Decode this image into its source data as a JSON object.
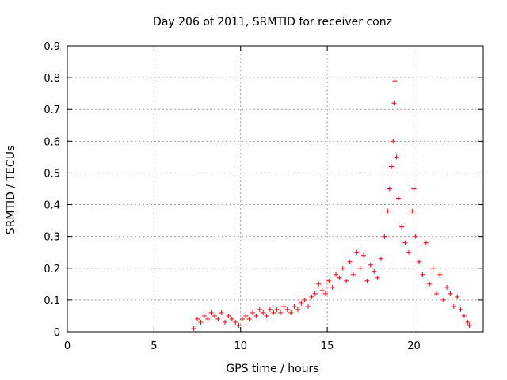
{
  "chart_data": {
    "type": "scatter",
    "title": "Day 206 of 2011, SRMTID for receiver conz",
    "xlabel": "GPS time / hours",
    "ylabel": "SRMTID / TECUs",
    "xlim": [
      0,
      24
    ],
    "ylim": [
      0,
      0.9
    ],
    "xticks": [
      "0",
      "5",
      "10",
      "15",
      "20"
    ],
    "xtick_values": [
      0,
      5,
      10,
      15,
      20
    ],
    "yticks": [
      "0",
      "0.1",
      "0.2",
      "0.3",
      "0.4",
      "0.5",
      "0.6",
      "0.7",
      "0.8",
      "0.9"
    ],
    "ytick_values": [
      0,
      0.1,
      0.2,
      0.3,
      0.4,
      0.5,
      0.6,
      0.7,
      0.8,
      0.9
    ],
    "grid": true,
    "marker": "+",
    "color": "#ff0000",
    "series": [
      {
        "name": "SRMTID",
        "x": [
          7.3,
          7.5,
          7.7,
          7.9,
          8.1,
          8.3,
          8.5,
          8.7,
          8.9,
          9.1,
          9.3,
          9.5,
          9.7,
          9.9,
          10.1,
          10.3,
          10.5,
          10.7,
          10.9,
          11.1,
          11.3,
          11.5,
          11.7,
          11.9,
          12.1,
          12.3,
          12.5,
          12.7,
          12.9,
          13.1,
          13.3,
          13.5,
          13.7,
          13.9,
          14.1,
          14.3,
          14.5,
          14.7,
          14.9,
          15.1,
          15.3,
          15.5,
          15.7,
          15.9,
          16.1,
          16.3,
          16.5,
          16.7,
          16.9,
          17.1,
          17.3,
          17.5,
          17.7,
          17.9,
          18.1,
          18.3,
          18.5,
          18.6,
          18.7,
          18.8,
          18.85,
          18.9,
          19.0,
          19.1,
          19.3,
          19.5,
          19.7,
          19.9,
          20.0,
          20.1,
          20.3,
          20.5,
          20.7,
          20.9,
          21.1,
          21.3,
          21.5,
          21.7,
          21.9,
          22.1,
          22.3,
          22.5,
          22.7,
          22.9,
          23.1,
          23.2
        ],
        "y": [
          0.01,
          0.04,
          0.03,
          0.05,
          0.04,
          0.06,
          0.05,
          0.04,
          0.06,
          0.03,
          0.05,
          0.04,
          0.03,
          0.02,
          0.04,
          0.05,
          0.04,
          0.06,
          0.05,
          0.07,
          0.06,
          0.05,
          0.07,
          0.06,
          0.07,
          0.06,
          0.08,
          0.07,
          0.06,
          0.08,
          0.07,
          0.09,
          0.1,
          0.08,
          0.11,
          0.12,
          0.15,
          0.13,
          0.12,
          0.16,
          0.14,
          0.18,
          0.17,
          0.2,
          0.16,
          0.22,
          0.18,
          0.25,
          0.2,
          0.24,
          0.16,
          0.21,
          0.19,
          0.17,
          0.23,
          0.3,
          0.38,
          0.45,
          0.52,
          0.6,
          0.72,
          0.79,
          0.55,
          0.42,
          0.33,
          0.28,
          0.25,
          0.38,
          0.45,
          0.3,
          0.22,
          0.18,
          0.28,
          0.15,
          0.2,
          0.12,
          0.18,
          0.1,
          0.14,
          0.12,
          0.08,
          0.11,
          0.07,
          0.05,
          0.03,
          0.02
        ]
      }
    ]
  }
}
